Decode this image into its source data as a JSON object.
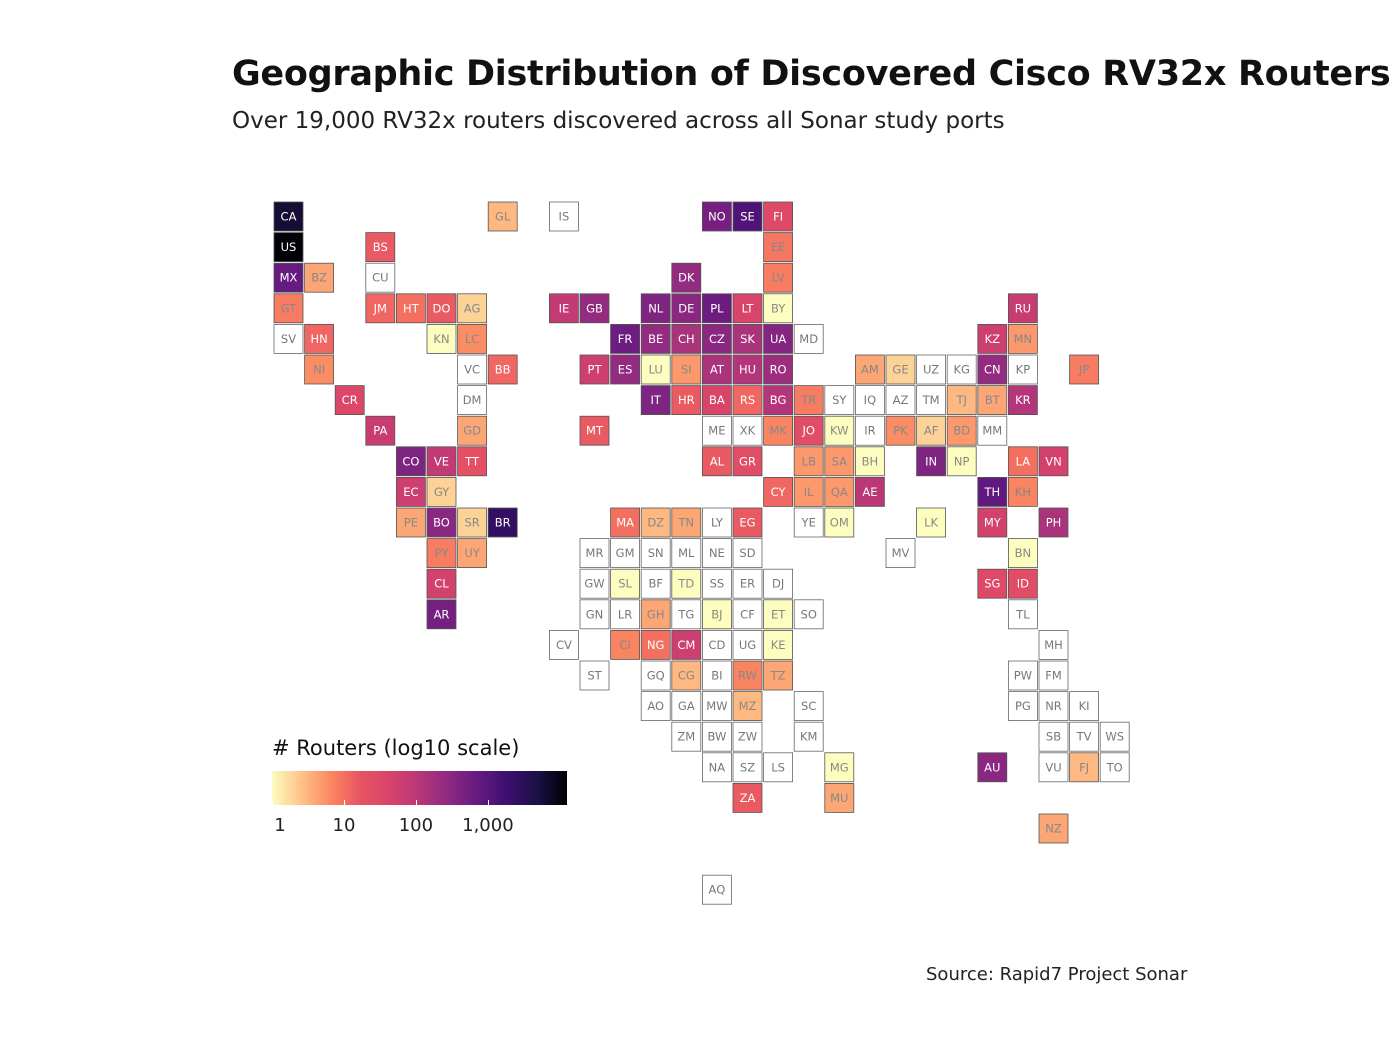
{
  "header": {
    "title": "Geographic Distribution of Discovered Cisco RV32x Routers",
    "subtitle": "Over 19,000 RV32x routers discovered across all Sonar study ports"
  },
  "legend": {
    "title": "# Routers (log10 scale)",
    "ticks": [
      {
        "label": "1",
        "value": 1
      },
      {
        "label": "10",
        "value": 10
      },
      {
        "label": "100",
        "value": 100
      },
      {
        "label": "1,000",
        "value": 1000
      }
    ],
    "colors": [
      "#fcfdbf",
      "#fec287",
      "#fb8761",
      "#e85362",
      "#d8436b",
      "#b73779",
      "#8c2981",
      "#641a80",
      "#3b0f70",
      "#1c1044",
      "#000004"
    ]
  },
  "source": "Source: Rapid7 Project Sonar",
  "chart_data": {
    "type": "heatmap",
    "subtype": "tile-grid-map",
    "title": "Geographic Distribution of Discovered Cisco RV32x Routers",
    "subtitle": "Over 19,000 RV32x routers discovered across all Sonar study ports",
    "scale": "log10",
    "legend_title": "# Routers (log10 scale)",
    "value_range": [
      1,
      10000
    ],
    "tiles": [
      {
        "code": "CA",
        "col": 0,
        "row": 0,
        "value": 6000
      },
      {
        "code": "GL",
        "col": 7,
        "row": 0,
        "value": 3
      },
      {
        "code": "IS",
        "col": 9,
        "row": 0,
        "value": 0
      },
      {
        "code": "NO",
        "col": 14,
        "row": 0,
        "value": 500
      },
      {
        "code": "SE",
        "col": 15,
        "row": 0,
        "value": 1200
      },
      {
        "code": "FI",
        "col": 16,
        "row": 0,
        "value": 30
      },
      {
        "code": "US",
        "col": 0,
        "row": 1,
        "value": 12000
      },
      {
        "code": "BS",
        "col": 3,
        "row": 1,
        "value": 15
      },
      {
        "code": "EE",
        "col": 16,
        "row": 1,
        "value": 9
      },
      {
        "code": "MX",
        "col": 0,
        "row": 2,
        "value": 700
      },
      {
        "code": "BZ",
        "col": 1,
        "row": 2,
        "value": 4
      },
      {
        "code": "CU",
        "col": 3,
        "row": 2,
        "value": 0
      },
      {
        "code": "DK",
        "col": 13,
        "row": 2,
        "value": 250
      },
      {
        "code": "LV",
        "col": 16,
        "row": 2,
        "value": 8
      },
      {
        "code": "GT",
        "col": 0,
        "row": 3,
        "value": 8
      },
      {
        "code": "JM",
        "col": 3,
        "row": 3,
        "value": 12
      },
      {
        "code": "HT",
        "col": 4,
        "row": 3,
        "value": 10
      },
      {
        "code": "DO",
        "col": 5,
        "row": 3,
        "value": 15
      },
      {
        "code": "AG",
        "col": 6,
        "row": 3,
        "value": 2
      },
      {
        "code": "IE",
        "col": 9,
        "row": 3,
        "value": 80
      },
      {
        "code": "GB",
        "col": 10,
        "row": 3,
        "value": 250
      },
      {
        "code": "NL",
        "col": 12,
        "row": 3,
        "value": 400
      },
      {
        "code": "DE",
        "col": 13,
        "row": 3,
        "value": 300
      },
      {
        "code": "PL",
        "col": 14,
        "row": 3,
        "value": 600
      },
      {
        "code": "LT",
        "col": 15,
        "row": 3,
        "value": 40
      },
      {
        "code": "BY",
        "col": 16,
        "row": 3,
        "value": 1
      },
      {
        "code": "RU",
        "col": 24,
        "row": 3,
        "value": 70
      },
      {
        "code": "SV",
        "col": 0,
        "row": 4,
        "value": 0
      },
      {
        "code": "HN",
        "col": 1,
        "row": 4,
        "value": 12
      },
      {
        "code": "KN",
        "col": 5,
        "row": 4,
        "value": 1
      },
      {
        "code": "LC",
        "col": 6,
        "row": 4,
        "value": 6
      },
      {
        "code": "FR",
        "col": 11,
        "row": 4,
        "value": 600
      },
      {
        "code": "BE",
        "col": 12,
        "row": 4,
        "value": 250
      },
      {
        "code": "CH",
        "col": 13,
        "row": 4,
        "value": 150
      },
      {
        "code": "CZ",
        "col": 14,
        "row": 4,
        "value": 300
      },
      {
        "code": "SK",
        "col": 15,
        "row": 4,
        "value": 150
      },
      {
        "code": "UA",
        "col": 16,
        "row": 4,
        "value": 350
      },
      {
        "code": "MD",
        "col": 17,
        "row": 4,
        "value": 0
      },
      {
        "code": "KZ",
        "col": 23,
        "row": 4,
        "value": 60
      },
      {
        "code": "MN",
        "col": 24,
        "row": 4,
        "value": 5
      },
      {
        "code": "NI",
        "col": 1,
        "row": 5,
        "value": 6
      },
      {
        "code": "VC",
        "col": 6,
        "row": 5,
        "value": 0
      },
      {
        "code": "BB",
        "col": 7,
        "row": 5,
        "value": 12
      },
      {
        "code": "PT",
        "col": 10,
        "row": 5,
        "value": 60
      },
      {
        "code": "ES",
        "col": 11,
        "row": 5,
        "value": 250
      },
      {
        "code": "LU",
        "col": 12,
        "row": 5,
        "value": 1
      },
      {
        "code": "SI",
        "col": 13,
        "row": 5,
        "value": 5
      },
      {
        "code": "AT",
        "col": 14,
        "row": 5,
        "value": 150
      },
      {
        "code": "HU",
        "col": 15,
        "row": 5,
        "value": 120
      },
      {
        "code": "RO",
        "col": 16,
        "row": 5,
        "value": 200
      },
      {
        "code": "AM",
        "col": 19,
        "row": 5,
        "value": 4
      },
      {
        "code": "GE",
        "col": 20,
        "row": 5,
        "value": 2
      },
      {
        "code": "UZ",
        "col": 21,
        "row": 5,
        "value": 0
      },
      {
        "code": "KG",
        "col": 22,
        "row": 5,
        "value": 0
      },
      {
        "code": "CN",
        "col": 23,
        "row": 5,
        "value": 250
      },
      {
        "code": "KP",
        "col": 24,
        "row": 5,
        "value": 0
      },
      {
        "code": "JP",
        "col": 26,
        "row": 5,
        "value": 8
      },
      {
        "code": "CR",
        "col": 2,
        "row": 6,
        "value": 35
      },
      {
        "code": "DM",
        "col": 6,
        "row": 6,
        "value": 0
      },
      {
        "code": "IT",
        "col": 12,
        "row": 6,
        "value": 400
      },
      {
        "code": "HR",
        "col": 13,
        "row": 6,
        "value": 15
      },
      {
        "code": "BA",
        "col": 14,
        "row": 6,
        "value": 40
      },
      {
        "code": "RS",
        "col": 15,
        "row": 6,
        "value": 12
      },
      {
        "code": "BG",
        "col": 16,
        "row": 6,
        "value": 120
      },
      {
        "code": "TR",
        "col": 17,
        "row": 6,
        "value": 8
      },
      {
        "code": "SY",
        "col": 18,
        "row": 6,
        "value": 0
      },
      {
        "code": "IQ",
        "col": 19,
        "row": 6,
        "value": 0
      },
      {
        "code": "AZ",
        "col": 20,
        "row": 6,
        "value": 0
      },
      {
        "code": "TM",
        "col": 21,
        "row": 6,
        "value": 0
      },
      {
        "code": "TJ",
        "col": 22,
        "row": 6,
        "value": 3
      },
      {
        "code": "BT",
        "col": 23,
        "row": 6,
        "value": 4
      },
      {
        "code": "KR",
        "col": 24,
        "row": 6,
        "value": 120
      },
      {
        "code": "PA",
        "col": 3,
        "row": 7,
        "value": 70
      },
      {
        "code": "GD",
        "col": 6,
        "row": 7,
        "value": 4
      },
      {
        "code": "MT",
        "col": 10,
        "row": 7,
        "value": 15
      },
      {
        "code": "ME",
        "col": 14,
        "row": 7,
        "value": 0
      },
      {
        "code": "XK",
        "col": 15,
        "row": 7,
        "value": 0
      },
      {
        "code": "MK",
        "col": 16,
        "row": 7,
        "value": 7
      },
      {
        "code": "JO",
        "col": 17,
        "row": 7,
        "value": 25
      },
      {
        "code": "KW",
        "col": 18,
        "row": 7,
        "value": 1
      },
      {
        "code": "IR",
        "col": 19,
        "row": 7,
        "value": 0
      },
      {
        "code": "PK",
        "col": 20,
        "row": 7,
        "value": 6
      },
      {
        "code": "AF",
        "col": 21,
        "row": 7,
        "value": 2
      },
      {
        "code": "BD",
        "col": 22,
        "row": 7,
        "value": 5
      },
      {
        "code": "MM",
        "col": 23,
        "row": 7,
        "value": 0
      },
      {
        "code": "CO",
        "col": 4,
        "row": 8,
        "value": 400
      },
      {
        "code": "VE",
        "col": 5,
        "row": 8,
        "value": 80
      },
      {
        "code": "TT",
        "col": 6,
        "row": 8,
        "value": 20
      },
      {
        "code": "AL",
        "col": 14,
        "row": 8,
        "value": 15
      },
      {
        "code": "GR",
        "col": 15,
        "row": 8,
        "value": 25
      },
      {
        "code": "LB",
        "col": 17,
        "row": 8,
        "value": 5
      },
      {
        "code": "SA",
        "col": 18,
        "row": 8,
        "value": 5
      },
      {
        "code": "BH",
        "col": 19,
        "row": 8,
        "value": 1
      },
      {
        "code": "IN",
        "col": 21,
        "row": 8,
        "value": 400
      },
      {
        "code": "NP",
        "col": 22,
        "row": 8,
        "value": 1
      },
      {
        "code": "LA",
        "col": 24,
        "row": 8,
        "value": 10
      },
      {
        "code": "VN",
        "col": 25,
        "row": 8,
        "value": 50
      },
      {
        "code": "EC",
        "col": 4,
        "row": 9,
        "value": 60
      },
      {
        "code": "GY",
        "col": 5,
        "row": 9,
        "value": 2
      },
      {
        "code": "CY",
        "col": 16,
        "row": 9,
        "value": 12
      },
      {
        "code": "IL",
        "col": 17,
        "row": 9,
        "value": 5
      },
      {
        "code": "QA",
        "col": 18,
        "row": 9,
        "value": 5
      },
      {
        "code": "AE",
        "col": 19,
        "row": 9,
        "value": 100
      },
      {
        "code": "TH",
        "col": 23,
        "row": 9,
        "value": 800
      },
      {
        "code": "KH",
        "col": 24,
        "row": 9,
        "value": 7
      },
      {
        "code": "PE",
        "col": 4,
        "row": 10,
        "value": 4
      },
      {
        "code": "BO",
        "col": 5,
        "row": 10,
        "value": 300
      },
      {
        "code": "SR",
        "col": 6,
        "row": 10,
        "value": 2
      },
      {
        "code": "BR",
        "col": 7,
        "row": 10,
        "value": 2500
      },
      {
        "code": "MA",
        "col": 11,
        "row": 10,
        "value": 10
      },
      {
        "code": "DZ",
        "col": 12,
        "row": 10,
        "value": 3
      },
      {
        "code": "TN",
        "col": 13,
        "row": 10,
        "value": 4
      },
      {
        "code": "LY",
        "col": 14,
        "row": 10,
        "value": 0
      },
      {
        "code": "EG",
        "col": 15,
        "row": 10,
        "value": 15
      },
      {
        "code": "YE",
        "col": 17,
        "row": 10,
        "value": 0
      },
      {
        "code": "OM",
        "col": 18,
        "row": 10,
        "value": 1
      },
      {
        "code": "LK",
        "col": 21,
        "row": 10,
        "value": 1
      },
      {
        "code": "MY",
        "col": 23,
        "row": 10,
        "value": 50
      },
      {
        "code": "PH",
        "col": 25,
        "row": 10,
        "value": 150
      },
      {
        "code": "PY",
        "col": 5,
        "row": 11,
        "value": 8
      },
      {
        "code": "UY",
        "col": 6,
        "row": 11,
        "value": 4
      },
      {
        "code": "MR",
        "col": 10,
        "row": 11,
        "value": 0
      },
      {
        "code": "GM",
        "col": 11,
        "row": 11,
        "value": 0
      },
      {
        "code": "SN",
        "col": 12,
        "row": 11,
        "value": 0
      },
      {
        "code": "ML",
        "col": 13,
        "row": 11,
        "value": 0
      },
      {
        "code": "NE",
        "col": 14,
        "row": 11,
        "value": 0
      },
      {
        "code": "SD",
        "col": 15,
        "row": 11,
        "value": 0
      },
      {
        "code": "MV",
        "col": 20,
        "row": 11,
        "value": 0
      },
      {
        "code": "BN",
        "col": 24,
        "row": 11,
        "value": 1
      },
      {
        "code": "CL",
        "col": 5,
        "row": 12,
        "value": 50
      },
      {
        "code": "GW",
        "col": 10,
        "row": 12,
        "value": 0
      },
      {
        "code": "SL",
        "col": 11,
        "row": 12,
        "value": 1
      },
      {
        "code": "BF",
        "col": 12,
        "row": 12,
        "value": 0
      },
      {
        "code": "TD",
        "col": 13,
        "row": 12,
        "value": 1
      },
      {
        "code": "SS",
        "col": 14,
        "row": 12,
        "value": 0
      },
      {
        "code": "ER",
        "col": 15,
        "row": 12,
        "value": 0
      },
      {
        "code": "DJ",
        "col": 16,
        "row": 12,
        "value": 0
      },
      {
        "code": "SG",
        "col": 23,
        "row": 12,
        "value": 30
      },
      {
        "code": "ID",
        "col": 24,
        "row": 12,
        "value": 25
      },
      {
        "code": "AR",
        "col": 5,
        "row": 13,
        "value": 500
      },
      {
        "code": "GN",
        "col": 10,
        "row": 13,
        "value": 0
      },
      {
        "code": "LR",
        "col": 11,
        "row": 13,
        "value": 0
      },
      {
        "code": "GH",
        "col": 12,
        "row": 13,
        "value": 4
      },
      {
        "code": "TG",
        "col": 13,
        "row": 13,
        "value": 0
      },
      {
        "code": "BJ",
        "col": 14,
        "row": 13,
        "value": 1
      },
      {
        "code": "CF",
        "col": 15,
        "row": 13,
        "value": 0
      },
      {
        "code": "ET",
        "col": 16,
        "row": 13,
        "value": 1
      },
      {
        "code": "SO",
        "col": 17,
        "row": 13,
        "value": 0
      },
      {
        "code": "TL",
        "col": 24,
        "row": 13,
        "value": 0
      },
      {
        "code": "CV",
        "col": 9,
        "row": 14,
        "value": 0
      },
      {
        "code": "CI",
        "col": 11,
        "row": 14,
        "value": 7
      },
      {
        "code": "NG",
        "col": 12,
        "row": 14,
        "value": 10
      },
      {
        "code": "CM",
        "col": 13,
        "row": 14,
        "value": 60
      },
      {
        "code": "CD",
        "col": 14,
        "row": 14,
        "value": 0
      },
      {
        "code": "UG",
        "col": 15,
        "row": 14,
        "value": 0
      },
      {
        "code": "KE",
        "col": 16,
        "row": 14,
        "value": 1
      },
      {
        "code": "MH",
        "col": 25,
        "row": 14,
        "value": 0
      },
      {
        "code": "ST",
        "col": 10,
        "row": 15,
        "value": 0
      },
      {
        "code": "GQ",
        "col": 12,
        "row": 15,
        "value": 0
      },
      {
        "code": "CG",
        "col": 13,
        "row": 15,
        "value": 3
      },
      {
        "code": "BI",
        "col": 14,
        "row": 15,
        "value": 0
      },
      {
        "code": "RW",
        "col": 15,
        "row": 15,
        "value": 7
      },
      {
        "code": "TZ",
        "col": 16,
        "row": 15,
        "value": 4
      },
      {
        "code": "PW",
        "col": 24,
        "row": 15,
        "value": 0
      },
      {
        "code": "FM",
        "col": 25,
        "row": 15,
        "value": 0
      },
      {
        "code": "AO",
        "col": 12,
        "row": 16,
        "value": 0
      },
      {
        "code": "GA",
        "col": 13,
        "row": 16,
        "value": 0
      },
      {
        "code": "MW",
        "col": 14,
        "row": 16,
        "value": 0
      },
      {
        "code": "MZ",
        "col": 15,
        "row": 16,
        "value": 3
      },
      {
        "code": "SC",
        "col": 17,
        "row": 16,
        "value": 0
      },
      {
        "code": "PG",
        "col": 24,
        "row": 16,
        "value": 0
      },
      {
        "code": "NR",
        "col": 25,
        "row": 16,
        "value": 0
      },
      {
        "code": "KI",
        "col": 26,
        "row": 16,
        "value": 0
      },
      {
        "code": "ZM",
        "col": 13,
        "row": 17,
        "value": 0
      },
      {
        "code": "BW",
        "col": 14,
        "row": 17,
        "value": 0
      },
      {
        "code": "ZW",
        "col": 15,
        "row": 17,
        "value": 0
      },
      {
        "code": "KM",
        "col": 17,
        "row": 17,
        "value": 0
      },
      {
        "code": "SB",
        "col": 25,
        "row": 17,
        "value": 0
      },
      {
        "code": "TV",
        "col": 26,
        "row": 17,
        "value": 0
      },
      {
        "code": "WS",
        "col": 27,
        "row": 17,
        "value": 0
      },
      {
        "code": "NA",
        "col": 14,
        "row": 18,
        "value": 0
      },
      {
        "code": "SZ",
        "col": 15,
        "row": 18,
        "value": 0
      },
      {
        "code": "LS",
        "col": 16,
        "row": 18,
        "value": 0
      },
      {
        "code": "MG",
        "col": 18,
        "row": 18,
        "value": 1
      },
      {
        "code": "AU",
        "col": 23,
        "row": 18,
        "value": 300
      },
      {
        "code": "VU",
        "col": 25,
        "row": 18,
        "value": 0
      },
      {
        "code": "FJ",
        "col": 26,
        "row": 18,
        "value": 3
      },
      {
        "code": "TO",
        "col": 27,
        "row": 18,
        "value": 0
      },
      {
        "code": "ZA",
        "col": 15,
        "row": 19,
        "value": 15
      },
      {
        "code": "MU",
        "col": 18,
        "row": 19,
        "value": 4
      },
      {
        "code": "NZ",
        "col": 25,
        "row": 20,
        "value": 4
      },
      {
        "code": "AQ",
        "col": 14,
        "row": 22,
        "value": 0
      }
    ]
  }
}
